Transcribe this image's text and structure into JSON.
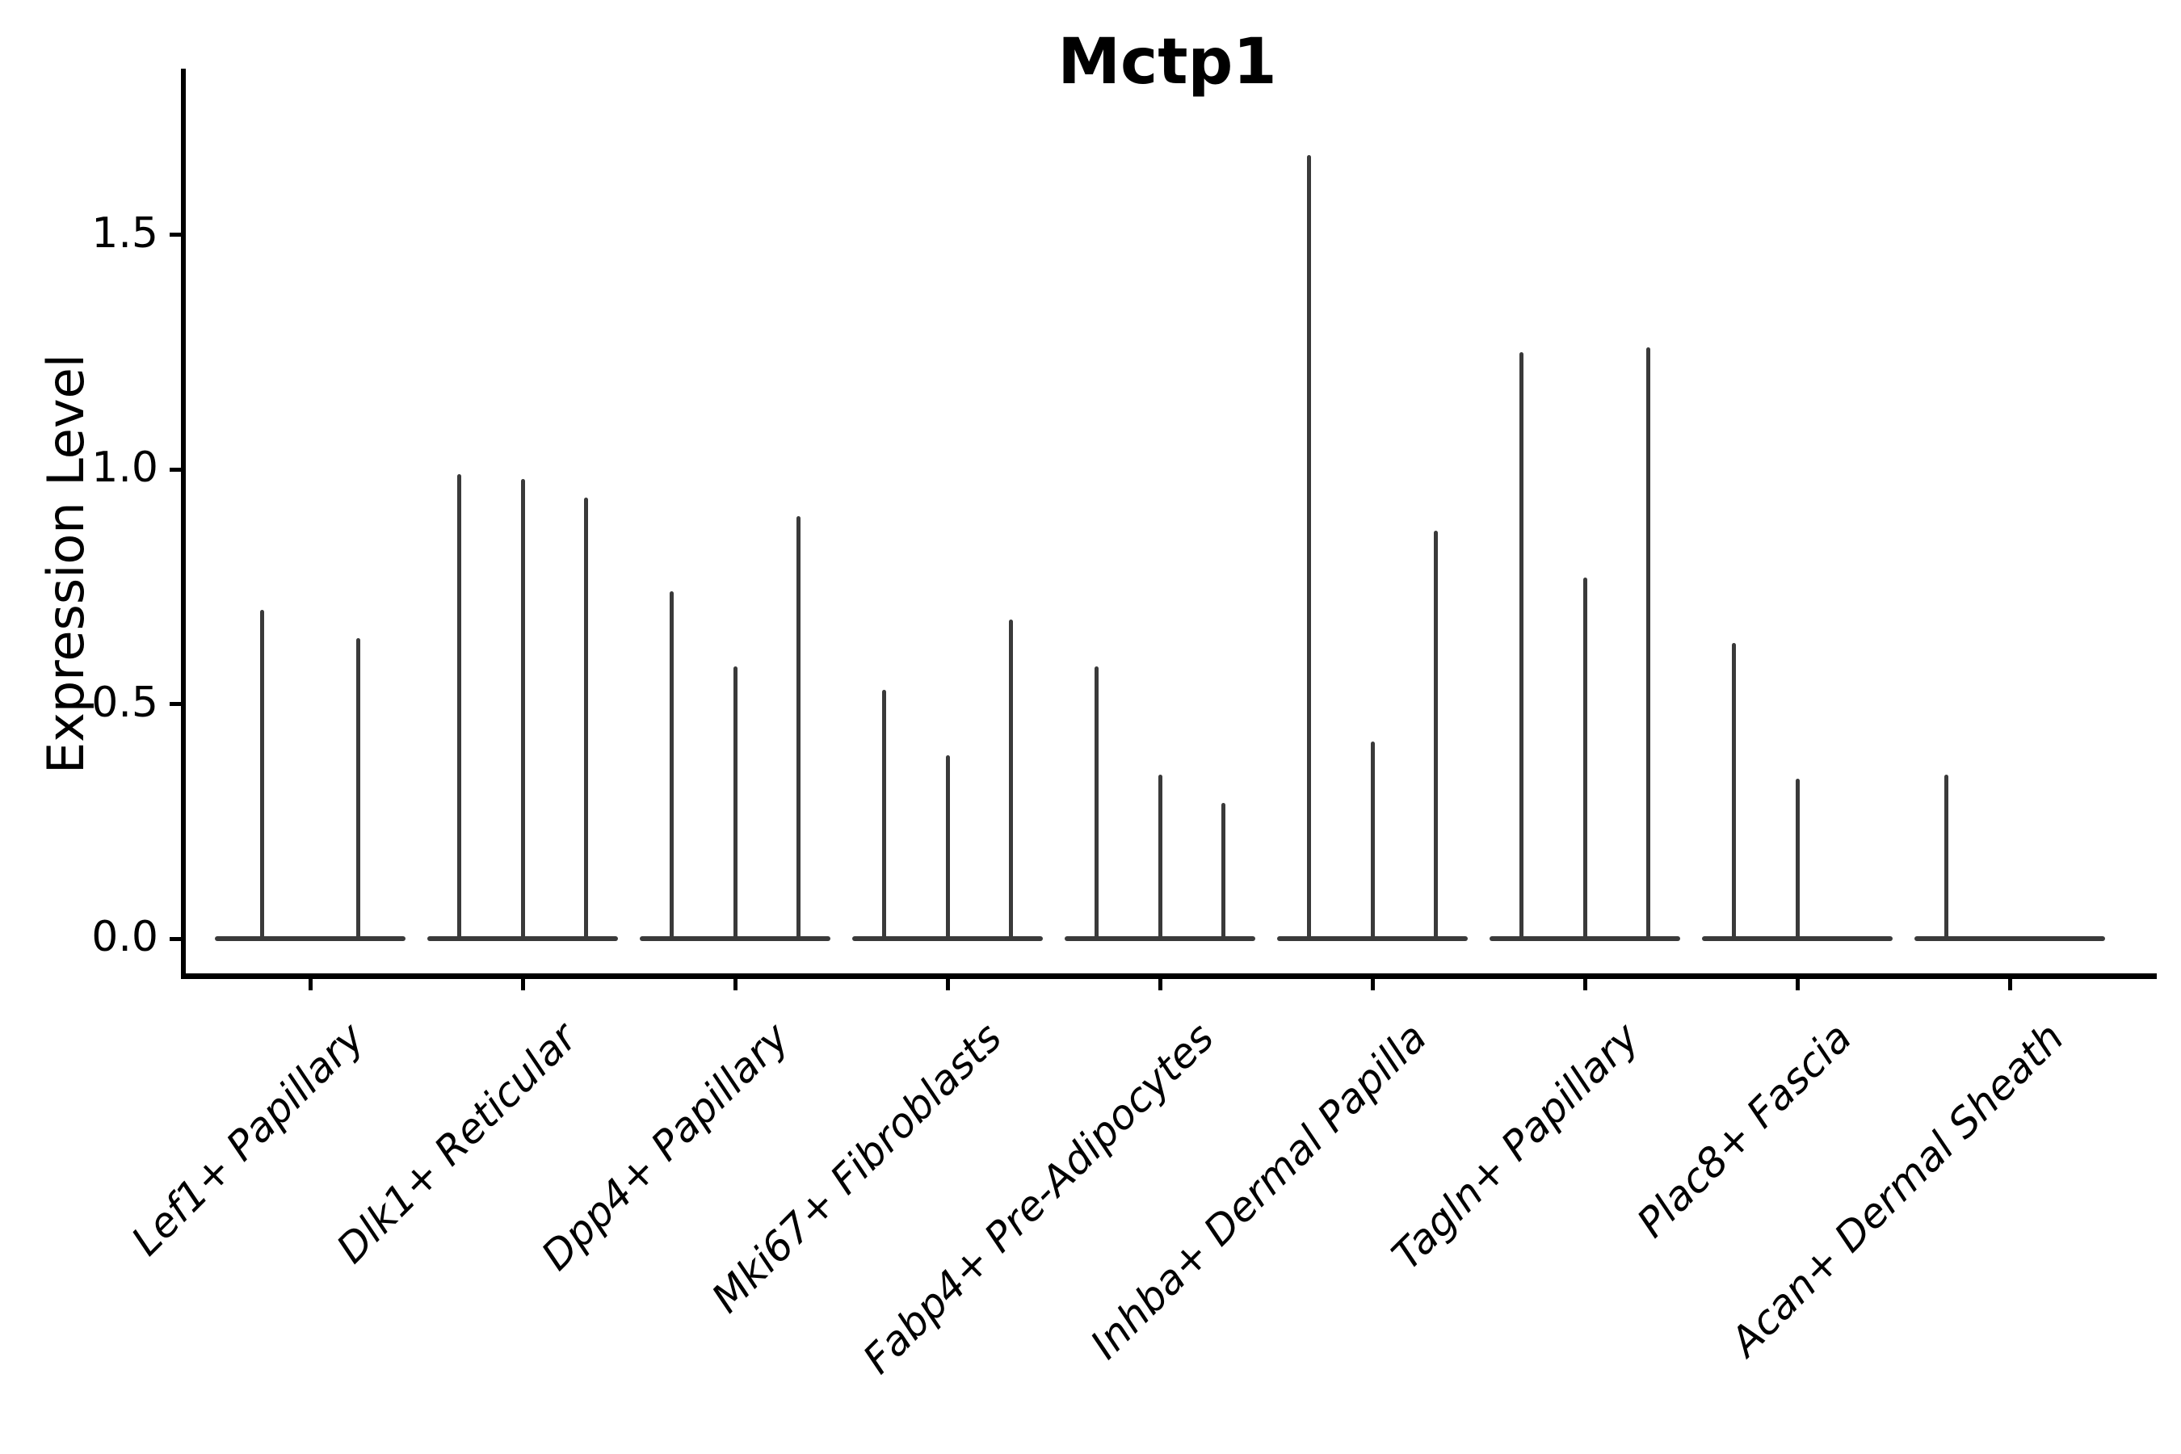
{
  "title": "Mctp1",
  "y_axis": {
    "label": "Expression Level",
    "tick_labels": [
      "0.0",
      "0.5",
      "1.0",
      "1.5"
    ],
    "tick_values": [
      0.0,
      0.5,
      1.0,
      1.5
    ]
  },
  "x_axis": {
    "categories": [
      "Lef1+ Papillary",
      "Dlk1+ Reticular",
      "Dpp4+ Papillary",
      "Mki67+ Fibroblasts",
      "Fabp4+ Pre-Adipocytes",
      "Inhba+ Dermal Papilla",
      "Tagln+ Papillary",
      "Plac8+ Fascia",
      "Acan+ Dermal Sheath"
    ]
  },
  "chart_data": {
    "type": "violin",
    "title": "Mctp1",
    "xlabel": "",
    "ylabel": "Expression Level",
    "ylim": [
      0,
      1.85
    ],
    "yticks": [
      0.0,
      0.5,
      1.0,
      1.5
    ],
    "grid": false,
    "legend_position": "none",
    "note": "Sparse-expression violins: each violin collapses to a flat bar at 0 with a thin spike up to its maximum expression value; value 0 means a flat violin with no spike",
    "categories": [
      "Lef1+ Papillary",
      "Dlk1+ Reticular",
      "Dpp4+ Papillary",
      "Mki67+ Fibroblasts",
      "Fabp4+ Pre-Adipocytes",
      "Inhba+ Dermal Papilla",
      "Tagln+ Papillary",
      "Plac8+ Fascia",
      "Acan+ Dermal Sheath"
    ],
    "series": [
      {
        "category": "Lef1+ Papillary",
        "violin_max_values": [
          0.7,
          0.64
        ]
      },
      {
        "category": "Dlk1+ Reticular",
        "violin_max_values": [
          0.99,
          0.98,
          0.94
        ]
      },
      {
        "category": "Dpp4+ Papillary",
        "violin_max_values": [
          0.74,
          0.58,
          0.9
        ]
      },
      {
        "category": "Mki67+ Fibroblasts",
        "violin_max_values": [
          0.53,
          0.39,
          0.68
        ]
      },
      {
        "category": "Fabp4+ Pre-Adipocytes",
        "violin_max_values": [
          0.58,
          0.35,
          0.29
        ]
      },
      {
        "category": "Inhba+ Dermal Papilla",
        "violin_max_values": [
          1.67,
          0.42,
          0.87
        ]
      },
      {
        "category": "Tagln+ Papillary",
        "violin_max_values": [
          1.25,
          0.77,
          1.26
        ]
      },
      {
        "category": "Plac8+ Fascia",
        "violin_max_values": [
          0.63,
          0.34,
          0
        ]
      },
      {
        "category": "Acan+ Dermal Sheath",
        "violin_max_values": [
          0.35,
          0,
          0
        ]
      }
    ]
  },
  "colors": {
    "background": "#ffffff",
    "axis": "#000000",
    "text": "#000000",
    "violin": "#3a3a3a"
  }
}
